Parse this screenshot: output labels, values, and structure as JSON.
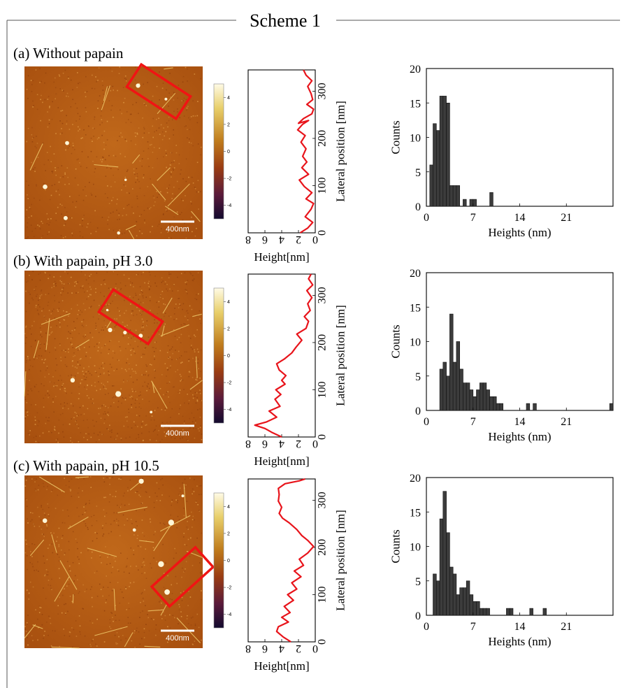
{
  "scheme": {
    "title": "Scheme 1"
  },
  "colors": {
    "profile_line": "#e8141b",
    "bar_fill": "#3c3c3c",
    "roi_box": "#f01414",
    "afm_base": "#b55a12"
  },
  "panels": [
    {
      "label": "(a) Without papain",
      "afm": {
        "scale_bar_label": "400nm",
        "colorbar_ticks": [
          "4",
          "2",
          "0",
          "-2",
          "-4"
        ]
      },
      "profile": {
        "xlabel": "Height[nm]",
        "ylabel": "Lateral position [nm]",
        "x_ticks": [
          "8",
          "6",
          "4",
          "2",
          "0"
        ],
        "y_ticks": [
          "0",
          "100",
          "200",
          "300"
        ],
        "xlim": [
          8,
          0
        ],
        "ylim": [
          0,
          345
        ],
        "points": [
          [
            1.8,
            0
          ],
          [
            0.9,
            10
          ],
          [
            0.3,
            22
          ],
          [
            1.2,
            34
          ],
          [
            0.5,
            50
          ],
          [
            0.2,
            62
          ],
          [
            1.1,
            72
          ],
          [
            0.4,
            85
          ],
          [
            1.3,
            98
          ],
          [
            1.9,
            112
          ],
          [
            0.8,
            124
          ],
          [
            1.6,
            138
          ],
          [
            1.0,
            150
          ],
          [
            1.5,
            162
          ],
          [
            1.1,
            178
          ],
          [
            1.7,
            192
          ],
          [
            1.2,
            206
          ],
          [
            2.1,
            218
          ],
          [
            1.5,
            230
          ],
          [
            0.8,
            238
          ],
          [
            2.0,
            232
          ],
          [
            1.4,
            242
          ],
          [
            0.4,
            252
          ],
          [
            0.2,
            262
          ],
          [
            1.0,
            272
          ],
          [
            0.3,
            282
          ],
          [
            0.5,
            295
          ],
          [
            0.9,
            310
          ],
          [
            0.4,
            322
          ],
          [
            1.1,
            334
          ],
          [
            1.4,
            345
          ]
        ]
      },
      "histogram": {
        "xlabel": "Heights (nm)",
        "ylabel": "Counts",
        "x_ticks": [
          "0",
          "7",
          "14",
          "21"
        ],
        "y_ticks": [
          "0",
          "5",
          "10",
          "15",
          "20"
        ],
        "xlim": [
          0,
          28
        ],
        "ylim": [
          0,
          20
        ],
        "bin_width": 0.5,
        "bins": [
          [
            0.5,
            6
          ],
          [
            1.0,
            12
          ],
          [
            1.5,
            11
          ],
          [
            2.0,
            16
          ],
          [
            2.5,
            16
          ],
          [
            3.0,
            15
          ],
          [
            3.5,
            3
          ],
          [
            4.0,
            3
          ],
          [
            4.5,
            3
          ],
          [
            5.0,
            0
          ],
          [
            5.5,
            1
          ],
          [
            6.0,
            0
          ],
          [
            6.5,
            1
          ],
          [
            7.0,
            1
          ],
          [
            9.5,
            2
          ]
        ]
      }
    },
    {
      "label": "(b) With papain, pH 3.0",
      "afm": {
        "scale_bar_label": "400nm",
        "colorbar_ticks": [
          "4",
          "2",
          "0",
          "-2",
          "-4"
        ]
      },
      "profile": {
        "xlabel": "Height[nm]",
        "ylabel": "Lateral position [nm]",
        "x_ticks": [
          "8",
          "6",
          "4",
          "2",
          "0"
        ],
        "y_ticks": [
          "0",
          "100",
          "200",
          "300"
        ],
        "xlim": [
          8,
          0
        ],
        "ylim": [
          0,
          345
        ],
        "points": [
          [
            4.0,
            0
          ],
          [
            5.2,
            10
          ],
          [
            6.0,
            18
          ],
          [
            7.2,
            25
          ],
          [
            5.8,
            32
          ],
          [
            4.6,
            42
          ],
          [
            5.5,
            55
          ],
          [
            4.2,
            65
          ],
          [
            4.8,
            80
          ],
          [
            4.1,
            90
          ],
          [
            4.7,
            100
          ],
          [
            3.6,
            112
          ],
          [
            4.0,
            120
          ],
          [
            3.5,
            130
          ],
          [
            4.3,
            142
          ],
          [
            4.6,
            155
          ],
          [
            3.7,
            165
          ],
          [
            2.8,
            178
          ],
          [
            2.3,
            190
          ],
          [
            1.6,
            205
          ],
          [
            2.2,
            218
          ],
          [
            1.1,
            230
          ],
          [
            0.8,
            245
          ],
          [
            1.3,
            255
          ],
          [
            0.6,
            268
          ],
          [
            0.9,
            282
          ],
          [
            0.4,
            295
          ],
          [
            1.0,
            310
          ],
          [
            0.3,
            322
          ],
          [
            0.8,
            335
          ],
          [
            0.5,
            345
          ]
        ]
      },
      "histogram": {
        "xlabel": "Heights (nm)",
        "ylabel": "Counts",
        "x_ticks": [
          "0",
          "7",
          "14",
          "21"
        ],
        "y_ticks": [
          "0",
          "5",
          "10",
          "15",
          "20"
        ],
        "xlim": [
          0,
          28
        ],
        "ylim": [
          0,
          20
        ],
        "bin_width": 0.5,
        "bins": [
          [
            2.0,
            6
          ],
          [
            2.5,
            7
          ],
          [
            3.0,
            5
          ],
          [
            3.5,
            14
          ],
          [
            4.0,
            7
          ],
          [
            4.5,
            10
          ],
          [
            5.0,
            6
          ],
          [
            5.5,
            4
          ],
          [
            6.0,
            4
          ],
          [
            6.5,
            3
          ],
          [
            7.0,
            2
          ],
          [
            7.5,
            3
          ],
          [
            8.0,
            4
          ],
          [
            8.5,
            4
          ],
          [
            9.0,
            3
          ],
          [
            9.5,
            2
          ],
          [
            10.0,
            2
          ],
          [
            10.5,
            1
          ],
          [
            11.0,
            1
          ],
          [
            15.0,
            1
          ],
          [
            16.0,
            1
          ],
          [
            27.5,
            1
          ]
        ]
      }
    },
    {
      "label": "(c) With papain, pH 10.5",
      "afm": {
        "scale_bar_label": "400nm",
        "colorbar_ticks": [
          "4",
          "2",
          "0",
          "-2",
          "-4"
        ]
      },
      "profile": {
        "xlabel": "Height[nm]",
        "ylabel": "Lateral position [nm]",
        "x_ticks": [
          "8",
          "6",
          "4",
          "2",
          "0"
        ],
        "y_ticks": [
          "0",
          "100",
          "200",
          "300"
        ],
        "xlim": [
          8,
          0
        ],
        "ylim": [
          0,
          345
        ],
        "points": [
          [
            2.9,
            0
          ],
          [
            3.8,
            10
          ],
          [
            4.6,
            22
          ],
          [
            4.4,
            32
          ],
          [
            3.2,
            42
          ],
          [
            4.0,
            52
          ],
          [
            3.0,
            62
          ],
          [
            3.7,
            75
          ],
          [
            2.6,
            88
          ],
          [
            3.3,
            100
          ],
          [
            2.2,
            112
          ],
          [
            2.8,
            125
          ],
          [
            1.7,
            138
          ],
          [
            2.5,
            150
          ],
          [
            1.4,
            162
          ],
          [
            1.9,
            175
          ],
          [
            0.9,
            188
          ],
          [
            0.2,
            202
          ],
          [
            0.9,
            215
          ],
          [
            1.6,
            225
          ],
          [
            2.2,
            238
          ],
          [
            3.1,
            252
          ],
          [
            3.9,
            262
          ],
          [
            4.3,
            272
          ],
          [
            4.0,
            285
          ],
          [
            4.4,
            298
          ],
          [
            4.3,
            312
          ],
          [
            4.4,
            325
          ],
          [
            3.6,
            335
          ],
          [
            1.9,
            341
          ],
          [
            1.2,
            345
          ]
        ]
      },
      "histogram": {
        "xlabel": "Heights (nm)",
        "ylabel": "Counts",
        "x_ticks": [
          "0",
          "7",
          "14",
          "21"
        ],
        "y_ticks": [
          "0",
          "5",
          "10",
          "15",
          "20"
        ],
        "xlim": [
          0,
          28
        ],
        "ylim": [
          0,
          20
        ],
        "bin_width": 0.5,
        "bins": [
          [
            1.0,
            6
          ],
          [
            1.5,
            5
          ],
          [
            2.0,
            14
          ],
          [
            2.5,
            18
          ],
          [
            3.0,
            12
          ],
          [
            3.5,
            7
          ],
          [
            4.0,
            6
          ],
          [
            4.5,
            3
          ],
          [
            5.0,
            4
          ],
          [
            5.5,
            4
          ],
          [
            6.0,
            5
          ],
          [
            6.5,
            3
          ],
          [
            7.0,
            2
          ],
          [
            7.5,
            2
          ],
          [
            8.0,
            1
          ],
          [
            8.5,
            1
          ],
          [
            9.0,
            1
          ],
          [
            12.0,
            1
          ],
          [
            12.5,
            1
          ],
          [
            15.5,
            1
          ],
          [
            17.5,
            1
          ]
        ]
      }
    }
  ]
}
